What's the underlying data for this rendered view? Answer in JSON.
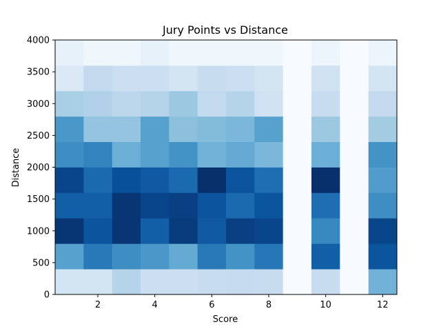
{
  "chart_data": {
    "type": "heatmap",
    "title": "Jury Points vs Distance",
    "xlabel": "Score",
    "ylabel": "Distance",
    "xlim": [
      0.5,
      12.5
    ],
    "ylim": [
      0,
      4000
    ],
    "x_ticks": [
      2,
      4,
      6,
      8,
      10,
      12
    ],
    "y_ticks": [
      0,
      500,
      1000,
      1500,
      2000,
      2500,
      3000,
      3500,
      4000
    ],
    "x_bin_edges": [
      0.5,
      1.5,
      2.5,
      3.5,
      4.5,
      5.5,
      6.5,
      7.5,
      8.5,
      9.5,
      10.5,
      11.5,
      12.5
    ],
    "y_bin_edges": [
      0,
      400,
      800,
      1200,
      1600,
      2000,
      2400,
      2800,
      3200,
      3600,
      4000
    ],
    "colormap": "Blues",
    "grid": false,
    "values": [
      [
        0.18,
        0.18,
        0.3,
        0.22,
        0.22,
        0.24,
        0.25,
        0.24,
        0.0,
        0.24,
        0.0,
        0.48
      ],
      [
        0.56,
        0.72,
        0.64,
        0.6,
        0.52,
        0.72,
        0.62,
        0.73,
        0.0,
        0.82,
        0.0,
        0.86
      ],
      [
        0.98,
        0.86,
        0.98,
        0.82,
        0.96,
        0.84,
        0.94,
        0.92,
        0.0,
        0.66,
        0.0,
        0.92
      ],
      [
        0.82,
        0.82,
        0.98,
        0.92,
        0.94,
        0.86,
        0.78,
        0.86,
        0.0,
        0.76,
        0.0,
        0.64
      ],
      [
        0.92,
        0.78,
        0.88,
        0.84,
        0.78,
        1.0,
        0.86,
        0.76,
        0.0,
        1.0,
        0.0,
        0.58
      ],
      [
        0.64,
        0.68,
        0.5,
        0.56,
        0.62,
        0.48,
        0.52,
        0.46,
        0.0,
        0.5,
        0.0,
        0.62
      ],
      [
        0.6,
        0.4,
        0.4,
        0.56,
        0.42,
        0.44,
        0.46,
        0.56,
        0.0,
        0.38,
        0.0,
        0.36
      ],
      [
        0.34,
        0.32,
        0.28,
        0.3,
        0.38,
        0.26,
        0.3,
        0.2,
        0.0,
        0.24,
        0.0,
        0.26
      ],
      [
        0.14,
        0.26,
        0.22,
        0.22,
        0.18,
        0.24,
        0.22,
        0.18,
        0.0,
        0.2,
        0.0,
        0.18
      ],
      [
        0.08,
        0.04,
        0.04,
        0.08,
        0.04,
        0.04,
        0.04,
        0.04,
        0.0,
        0.05,
        0.0,
        0.05
      ]
    ]
  }
}
